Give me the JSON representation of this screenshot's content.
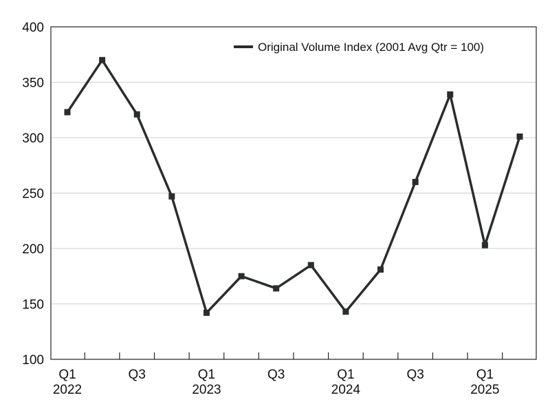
{
  "chart_data": {
    "type": "line",
    "title": "",
    "xlabel": "",
    "ylabel": "",
    "ylim": [
      100,
      400
    ],
    "y_ticks": [
      "100",
      "150",
      "200",
      "250",
      "300",
      "350",
      "400"
    ],
    "grid": "horizontal",
    "legend_position": "top-right",
    "x": [
      "Q1 2022",
      "Q2 2022",
      "Q3 2022",
      "Q4 2022",
      "Q1 2023",
      "Q2 2023",
      "Q3 2023",
      "Q4 2023",
      "Q1 2024",
      "Q2 2024",
      "Q3 2024",
      "Q4 2024",
      "Q1 2025",
      "Q2 2025"
    ],
    "x_tick_labels": [
      {
        "index": 0,
        "line1": "Q1",
        "line2": "2022"
      },
      {
        "index": 2,
        "line1": "Q3",
        "line2": ""
      },
      {
        "index": 4,
        "line1": "Q1",
        "line2": "2023"
      },
      {
        "index": 6,
        "line1": "Q3",
        "line2": ""
      },
      {
        "index": 8,
        "line1": "Q1",
        "line2": "2024"
      },
      {
        "index": 10,
        "line1": "Q3",
        "line2": ""
      },
      {
        "index": 12,
        "line1": "Q1",
        "line2": "2025"
      }
    ],
    "series": [
      {
        "name": "Original Volume Index (2001 Avg Qtr = 100)",
        "color": "#2a2c2e",
        "marker": "square",
        "values": [
          323,
          370,
          321,
          247,
          142,
          175,
          164,
          185,
          143,
          181,
          260,
          339,
          203,
          301
        ]
      }
    ]
  }
}
